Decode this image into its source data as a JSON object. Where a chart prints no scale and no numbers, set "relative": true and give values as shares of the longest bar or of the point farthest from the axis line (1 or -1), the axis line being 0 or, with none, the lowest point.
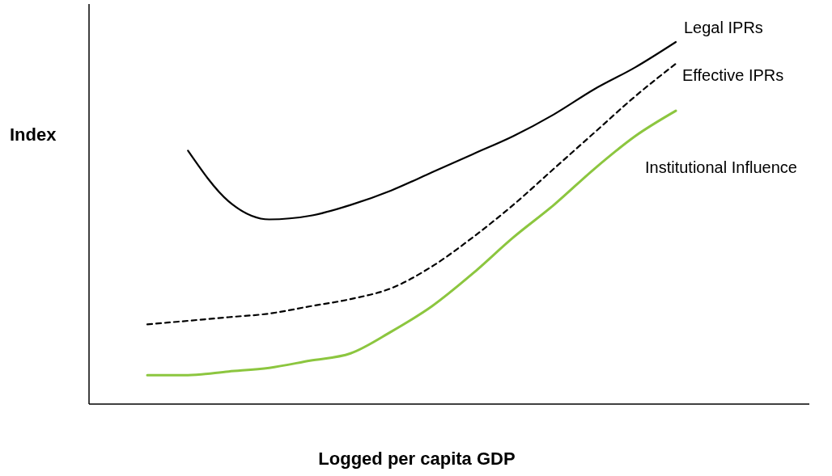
{
  "chart_data": {
    "type": "line",
    "relative": true,
    "xlabel": "Logged per capita GDP",
    "ylabel": "Index",
    "categories": [
      null,
      null,
      null,
      null,
      null,
      null,
      null,
      null,
      null,
      null,
      null,
      null,
      null,
      null
    ],
    "series": [
      {
        "name": "Legal IPRs",
        "color": "#000000",
        "line_style": "solid",
        "values": [
          null,
          0.7,
          0.56,
          0.51,
          0.52,
          0.55,
          0.59,
          0.64,
          0.69,
          0.74,
          0.8,
          0.87,
          0.93,
          1
        ]
      },
      {
        "name": "Effective IPRs",
        "color": "#000000",
        "line_style": "dashed",
        "values": [
          0.22,
          0.23,
          0.24,
          0.25,
          0.27,
          0.29,
          0.32,
          0.38,
          0.46,
          0.55,
          0.65,
          0.75,
          0.85,
          0.94
        ]
      },
      {
        "name": "Institutional Influence",
        "color": "#8cc63f",
        "line_style": "solid",
        "values": [
          0.08,
          0.08,
          0.09,
          0.1,
          0.12,
          0.14,
          0.2,
          0.27,
          0.36,
          0.46,
          0.55,
          0.65,
          0.74,
          0.81
        ]
      }
    ]
  }
}
